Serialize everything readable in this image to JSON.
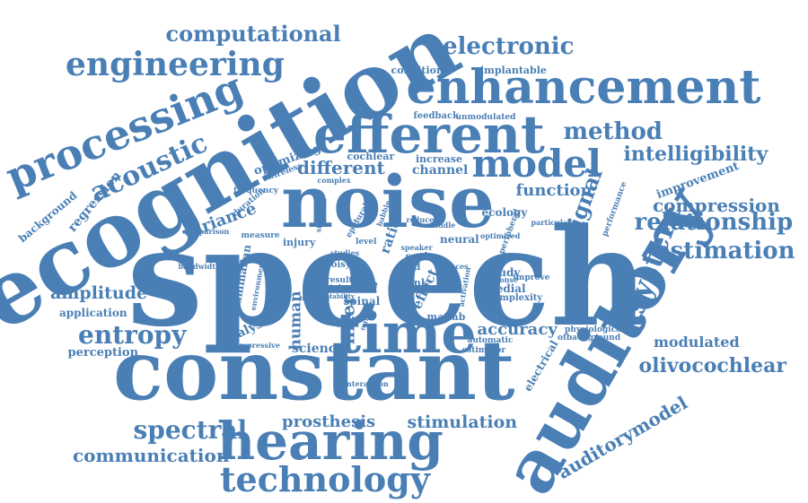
{
  "color": "#4a7fb5",
  "words": [
    "speech",
    "constant",
    "recognition",
    "noise",
    "auditory",
    "time",
    "hearing",
    "enhancement",
    "efferent",
    "processing",
    "technology",
    "model",
    "engineering",
    "electronic",
    "computational",
    "method",
    "entropy",
    "spectral",
    "acoustic",
    "intelligibility",
    "relationship",
    "estimation",
    "system",
    "signal",
    "olivocochlear",
    "communication",
    "auditorymodel",
    "compression",
    "different",
    "function",
    "amplitude",
    "filter",
    "accuracy",
    "stimulation",
    "prosthesis",
    "modulated",
    "variance",
    "optimizing",
    "channel",
    "regression",
    "background",
    "improvement",
    "perception",
    "application",
    "human",
    "analysis",
    "mammalian",
    "science",
    "matlab",
    "study",
    "medial",
    "complexity",
    "ecology",
    "neural",
    "spinal",
    "type",
    "bank",
    "effect",
    "aid",
    "cord",
    "noisy",
    "injury",
    "ratio",
    "electrical",
    "physiological",
    "ofbackground",
    "automatic",
    "estimator",
    "condition",
    "implantable",
    "feedback",
    "unmodulated",
    "cochlear",
    "increase",
    "frequency",
    "duration",
    "comparison",
    "bandwidth",
    "wireless",
    "complex",
    "epidural",
    "measure",
    "environment",
    "compressive",
    "interaction",
    "performance",
    "peripheral",
    "optimized",
    "particular",
    "result",
    "higher",
    "speaker",
    "response",
    "improve",
    "level",
    "studies",
    "babble",
    "stimulus",
    "reduces",
    "activation",
    "middle",
    "reduce",
    "number",
    "output",
    "stability"
  ]
}
